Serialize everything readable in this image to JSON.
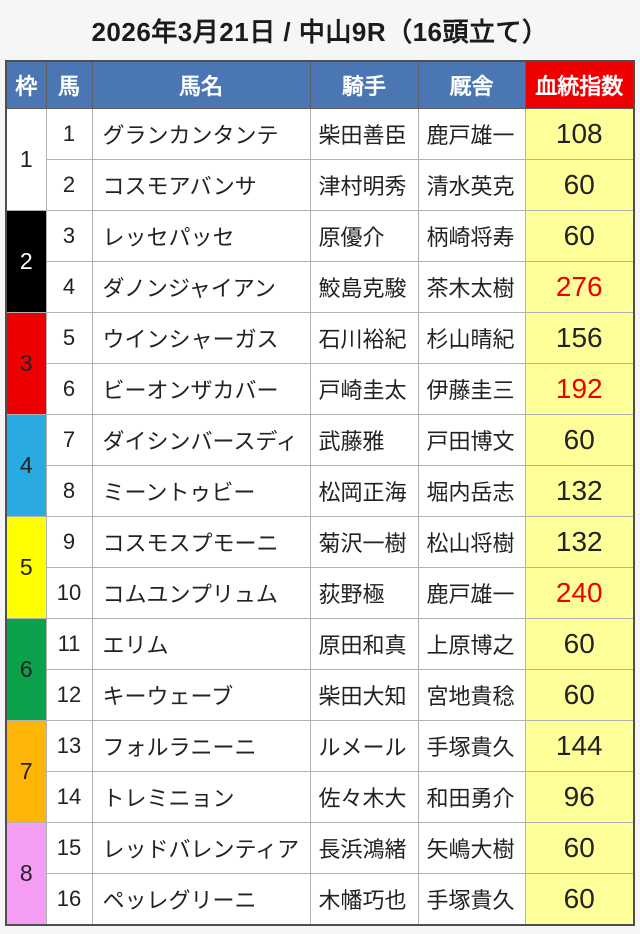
{
  "page": {
    "title": "2026年3月21日 / 中山9R（16頭立て）",
    "background_color": "#f6f6f6"
  },
  "table": {
    "headers": {
      "frame": "枠",
      "number": "馬",
      "name": "馬名",
      "jockey": "騎手",
      "stable": "厩舎",
      "index": "血統指数"
    },
    "colors": {
      "header_blue": "#4a76b4",
      "header_red": "#ee0000",
      "header_text": "#ffffff",
      "index_cell_bg": "#ffff99",
      "index_red_text": "#ee0000"
    },
    "frames": [
      {
        "frame": "1",
        "color": "#ffffff",
        "text_color": "#222222",
        "horses": [
          {
            "number": "1",
            "name": "グランカンタンテ",
            "jockey": "柴田善臣",
            "stable": "鹿戸雄一",
            "index": "108",
            "index_red": false
          },
          {
            "number": "2",
            "name": "コスモアバンサ",
            "jockey": "津村明秀",
            "stable": "清水英克",
            "index": "60",
            "index_red": false
          }
        ]
      },
      {
        "frame": "2",
        "color": "#000000",
        "text_color": "#ffffff",
        "horses": [
          {
            "number": "3",
            "name": "レッセパッセ",
            "jockey": "原優介",
            "stable": "柄崎将寿",
            "index": "60",
            "index_red": false
          },
          {
            "number": "4",
            "name": "ダノンジャイアン",
            "jockey": "鮫島克駿",
            "stable": "茶木太樹",
            "index": "276",
            "index_red": true
          }
        ]
      },
      {
        "frame": "3",
        "color": "#ee0000",
        "text_color": "#222222",
        "horses": [
          {
            "number": "5",
            "name": "ウインシャーガス",
            "jockey": "石川裕紀",
            "stable": "杉山晴紀",
            "index": "156",
            "index_red": false
          },
          {
            "number": "6",
            "name": "ビーオンザカバー",
            "jockey": "戸崎圭太",
            "stable": "伊藤圭三",
            "index": "192",
            "index_red": true
          }
        ]
      },
      {
        "frame": "4",
        "color": "#29abe2",
        "text_color": "#222222",
        "horses": [
          {
            "number": "7",
            "name": "ダイシンバースディ",
            "jockey": "武藤雅",
            "stable": "戸田博文",
            "index": "60",
            "index_red": false
          },
          {
            "number": "8",
            "name": "ミーントゥビー",
            "jockey": "松岡正海",
            "stable": "堀内岳志",
            "index": "132",
            "index_red": false
          }
        ]
      },
      {
        "frame": "5",
        "color": "#ffff00",
        "text_color": "#222222",
        "horses": [
          {
            "number": "9",
            "name": "コスモスプモーニ",
            "jockey": "菊沢一樹",
            "stable": "松山将樹",
            "index": "132",
            "index_red": false
          },
          {
            "number": "10",
            "name": "コムユンプリュム",
            "jockey": "荻野極",
            "stable": "鹿戸雄一",
            "index": "240",
            "index_red": true
          }
        ]
      },
      {
        "frame": "6",
        "color": "#0ba04a",
        "text_color": "#222222",
        "horses": [
          {
            "number": "11",
            "name": "エリム",
            "jockey": "原田和真",
            "stable": "上原博之",
            "index": "60",
            "index_red": false
          },
          {
            "number": "12",
            "name": "キーウェーブ",
            "jockey": "柴田大知",
            "stable": "宮地貴稔",
            "index": "60",
            "index_red": false
          }
        ]
      },
      {
        "frame": "7",
        "color": "#ffb508",
        "text_color": "#222222",
        "horses": [
          {
            "number": "13",
            "name": "フォルラニーニ",
            "jockey": "ルメール",
            "stable": "手塚貴久",
            "index": "144",
            "index_red": false
          },
          {
            "number": "14",
            "name": "トレミニョン",
            "jockey": "佐々木大",
            "stable": "和田勇介",
            "index": "96",
            "index_red": false
          }
        ]
      },
      {
        "frame": "8",
        "color": "#f59df2",
        "text_color": "#222222",
        "horses": [
          {
            "number": "15",
            "name": "レッドバレンティア",
            "jockey": "長浜鴻緒",
            "stable": "矢嶋大樹",
            "index": "60",
            "index_red": false
          },
          {
            "number": "16",
            "name": "ペッレグリーニ",
            "jockey": "木幡巧也",
            "stable": "手塚貴久",
            "index": "60",
            "index_red": false
          }
        ]
      }
    ]
  }
}
